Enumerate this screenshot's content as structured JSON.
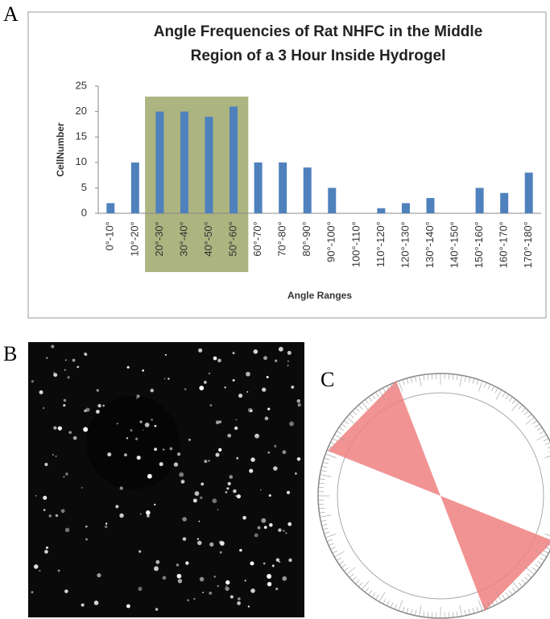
{
  "panel_labels": [
    "A",
    "B",
    "C"
  ],
  "chart_data": {
    "type": "bar",
    "title": [
      "Angle Frequencies of Rat NHFC in the Middle",
      "Region of a 3 Hour Inside Hydrogel"
    ],
    "x_label": "Angle Ranges",
    "y_label": "CellNumber",
    "categories": [
      "0°-10°",
      "10°-20°",
      "20°-30°",
      "30°-40°",
      "40°-50°",
      "50°-60°",
      "60°-70°",
      "70°-80°",
      "80°-90°",
      "90°-100°",
      "100°-110°",
      "110°-120°",
      "120°-130°",
      "130°-140°",
      "140°-150°",
      "150°-160°",
      "160°-170°",
      "170°-180°"
    ],
    "values": [
      2,
      10,
      20,
      20,
      19,
      21,
      10,
      10,
      9,
      5,
      0,
      1,
      2,
      3,
      0,
      5,
      4,
      8
    ],
    "color": "#4f81bd",
    "highlight_color": "#7f8c3c",
    "ylim": [
      0,
      25
    ],
    "yticks": [
      0,
      5,
      10,
      15,
      20,
      25
    ],
    "grid": false
  }
}
